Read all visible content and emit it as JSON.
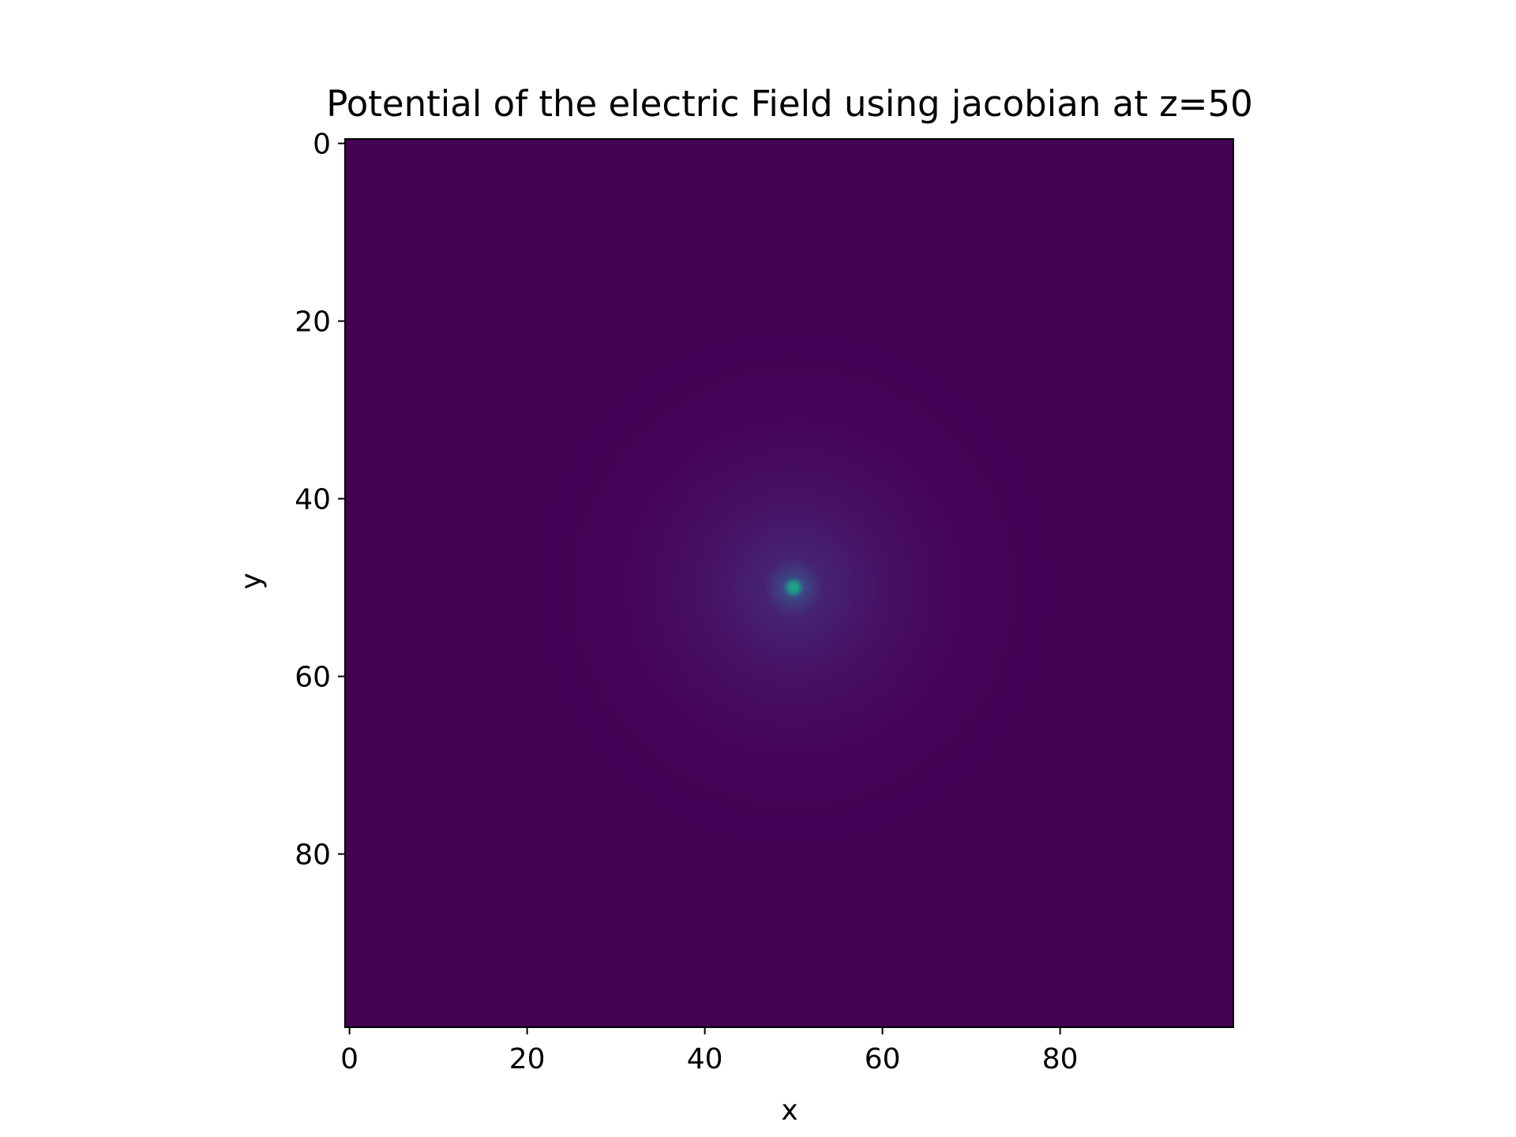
{
  "chart_data": {
    "type": "heatmap",
    "title": "Potential of the electric Field using jacobian at z=50",
    "xlabel": "x",
    "ylabel": "y",
    "xlim": [
      -0.5,
      99.5
    ],
    "ylim": [
      99.5,
      -0.5
    ],
    "grid": false,
    "legend": "none",
    "colormap": "viridis",
    "x_ticks": [
      0,
      20,
      40,
      60,
      80
    ],
    "x_tick_labels": [
      "0",
      "20",
      "40",
      "60",
      "80"
    ],
    "y_ticks": [
      0,
      20,
      40,
      60,
      80
    ],
    "y_tick_labels": [
      "0",
      "20",
      "40",
      "60",
      "80"
    ],
    "grid_size": [
      100,
      100
    ],
    "peak": {
      "x": 50,
      "y": 50
    },
    "colors": {
      "background": "#440154",
      "mid": "#3b528b",
      "peak": "#21a585"
    }
  }
}
